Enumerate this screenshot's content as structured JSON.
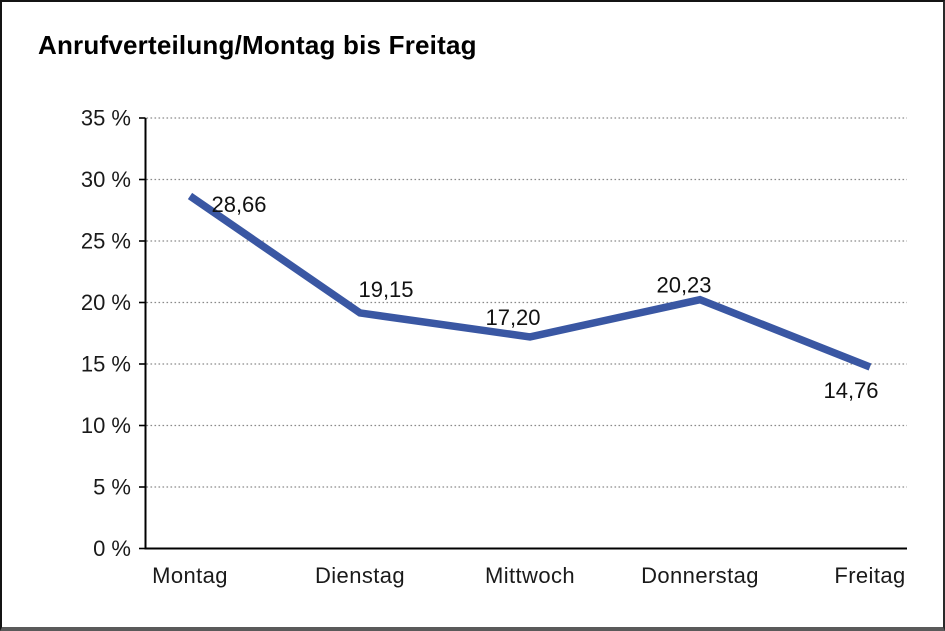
{
  "title": "Anrufverteilung/Montag bis Freitag",
  "chart_data": {
    "type": "line",
    "title": "Anrufverteilung/Montag bis Freitag",
    "categories": [
      "Montag",
      "Dienstag",
      "Mittwoch",
      "Donnerstag",
      "Freitag"
    ],
    "values": [
      28.66,
      19.15,
      17.2,
      20.23,
      14.76
    ],
    "point_labels": [
      "28,66",
      "19,15",
      "17,20",
      "20,23",
      "14,76"
    ],
    "xlabel": "",
    "ylabel": "",
    "ylim": [
      0,
      35
    ],
    "yticks": [
      0,
      5,
      10,
      15,
      20,
      25,
      30,
      35
    ],
    "ytick_labels": [
      "0 %",
      "5 %",
      "10 %",
      "15 %",
      "20 %",
      "25 %",
      "30 %",
      "35 %"
    ],
    "grid": "horizontal-dotted",
    "legend": "none",
    "colors": {
      "line": "#3A57A3",
      "axis": "#000000",
      "gridline": "#8a8a8a",
      "tick_label": "#1a1a1a",
      "data_label": "#111111"
    }
  }
}
